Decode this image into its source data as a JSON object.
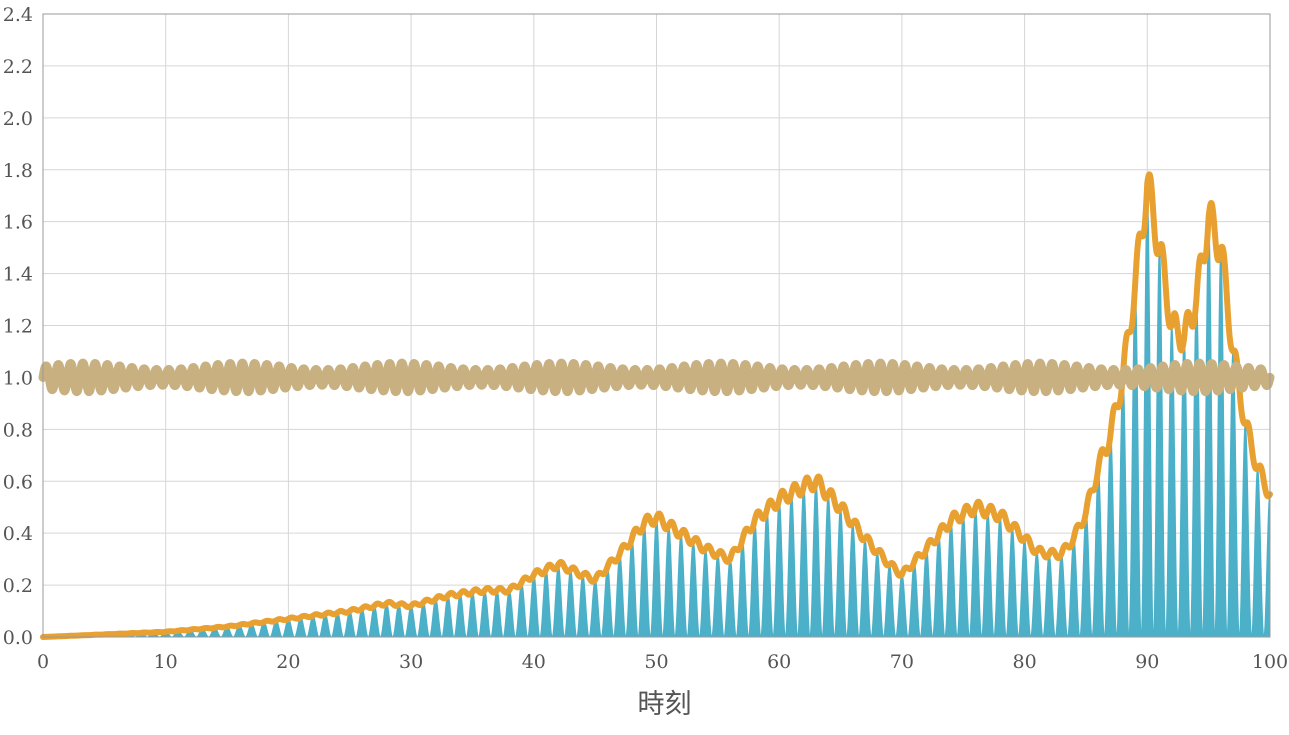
{
  "chart_data": {
    "type": "line",
    "title": "",
    "xlabel": "時刻",
    "ylabel": "",
    "xlim": [
      0,
      100
    ],
    "ylim": [
      0,
      2.4
    ],
    "xticks": [
      "0",
      "10",
      "20",
      "30",
      "40",
      "50",
      "60",
      "70",
      "80",
      "90",
      "100"
    ],
    "yticks": [
      "0.0",
      "0.2",
      "0.4",
      "0.6",
      "0.8",
      "1.0",
      "1.2",
      "1.4",
      "1.6",
      "1.8",
      "2.0",
      "2.2",
      "2.4"
    ],
    "grid": true,
    "legend": "none",
    "oscillation_period": 1,
    "envelope": {
      "x": [
        0,
        5,
        10,
        15,
        20,
        25,
        28,
        30,
        33,
        36,
        38,
        40,
        42,
        43,
        45,
        47,
        49,
        50,
        52,
        54,
        56,
        58,
        60,
        62,
        63,
        65,
        67,
        69,
        70,
        72,
        74,
        76,
        78,
        80,
        81,
        82,
        83,
        84,
        85,
        86,
        87,
        88,
        89,
        90,
        91,
        92,
        93,
        94,
        95,
        96,
        97,
        98,
        99,
        100
      ],
      "y": [
        0.0,
        0.01,
        0.02,
        0.04,
        0.07,
        0.1,
        0.13,
        0.12,
        0.16,
        0.18,
        0.18,
        0.24,
        0.28,
        0.26,
        0.22,
        0.32,
        0.44,
        0.46,
        0.4,
        0.34,
        0.3,
        0.45,
        0.53,
        0.58,
        0.6,
        0.5,
        0.38,
        0.28,
        0.24,
        0.34,
        0.45,
        0.5,
        0.47,
        0.38,
        0.33,
        0.32,
        0.32,
        0.38,
        0.48,
        0.65,
        0.78,
        1.0,
        1.35,
        1.75,
        1.5,
        1.2,
        1.15,
        1.3,
        1.62,
        1.5,
        1.1,
        0.82,
        0.65,
        0.55
      ]
    },
    "series": [
      {
        "color": "#4bb0c8",
        "style": "oscillating fill under envelope",
        "x": [
          0,
          5,
          10,
          15,
          20,
          25,
          28,
          30,
          33,
          36,
          38,
          40,
          42,
          43,
          45,
          47,
          49,
          50,
          52,
          54,
          56,
          58,
          60,
          62,
          63,
          65,
          67,
          69,
          70,
          72,
          74,
          76,
          78,
          80,
          81,
          82,
          83,
          84,
          85,
          86,
          87,
          88,
          89,
          90,
          91,
          92,
          93,
          94,
          95,
          96,
          97,
          98,
          99,
          100
        ],
        "y": [
          0.0,
          0.01,
          0.02,
          0.04,
          0.07,
          0.1,
          0.13,
          0.12,
          0.16,
          0.18,
          0.18,
          0.24,
          0.28,
          0.26,
          0.22,
          0.32,
          0.44,
          0.46,
          0.4,
          0.34,
          0.3,
          0.45,
          0.53,
          0.58,
          0.6,
          0.5,
          0.38,
          0.28,
          0.24,
          0.34,
          0.45,
          0.5,
          0.47,
          0.38,
          0.33,
          0.32,
          0.32,
          0.38,
          0.48,
          0.65,
          0.78,
          1.0,
          1.35,
          1.75,
          1.5,
          1.2,
          1.15,
          1.3,
          1.62,
          1.5,
          1.1,
          0.82,
          0.65,
          0.55
        ]
      },
      {
        "color": "#e8a030",
        "style": "envelope line",
        "x": [
          0,
          5,
          10,
          15,
          20,
          25,
          28,
          30,
          33,
          36,
          38,
          40,
          42,
          43,
          45,
          47,
          49,
          50,
          52,
          54,
          56,
          58,
          60,
          62,
          63,
          65,
          67,
          69,
          70,
          72,
          74,
          76,
          78,
          80,
          81,
          82,
          83,
          84,
          85,
          86,
          87,
          88,
          89,
          90,
          91,
          92,
          93,
          94,
          95,
          96,
          97,
          98,
          99,
          100
        ],
        "y": [
          0.0,
          0.01,
          0.02,
          0.04,
          0.07,
          0.1,
          0.13,
          0.12,
          0.16,
          0.18,
          0.18,
          0.24,
          0.28,
          0.26,
          0.22,
          0.32,
          0.44,
          0.46,
          0.4,
          0.34,
          0.3,
          0.45,
          0.53,
          0.58,
          0.6,
          0.5,
          0.38,
          0.28,
          0.24,
          0.34,
          0.45,
          0.5,
          0.47,
          0.38,
          0.33,
          0.32,
          0.32,
          0.38,
          0.48,
          0.65,
          0.78,
          1.0,
          1.35,
          1.75,
          1.5,
          1.2,
          1.15,
          1.3,
          1.62,
          1.5,
          1.1,
          0.82,
          0.65,
          0.55
        ]
      },
      {
        "color": "#c8b080",
        "style": "oscillating band",
        "x": [
          0,
          100
        ],
        "y": [
          1.0,
          1.0
        ],
        "amplitude": 0.05
      }
    ]
  }
}
